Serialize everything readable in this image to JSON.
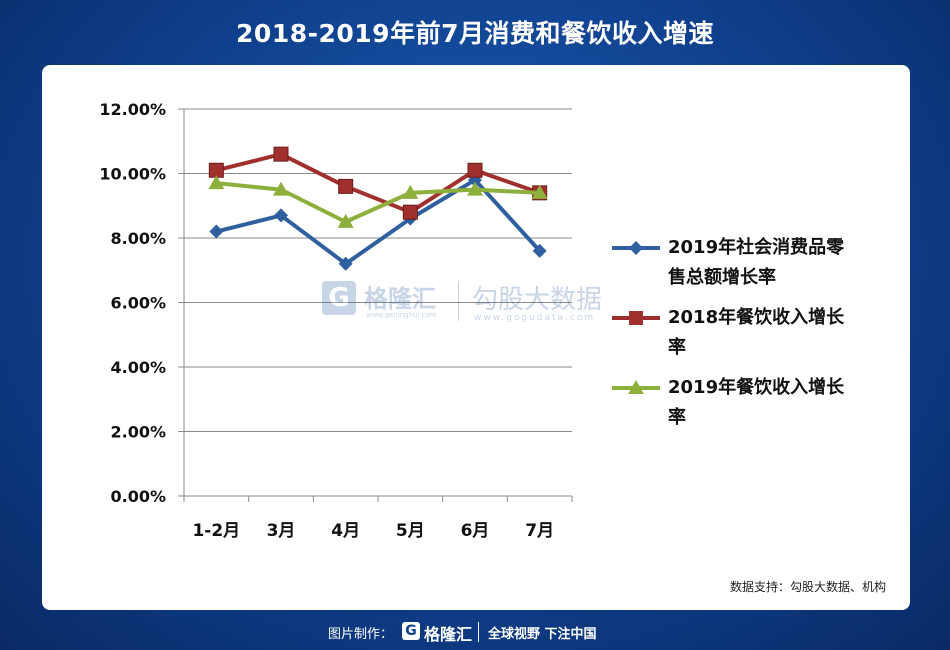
{
  "title": "2018-2019年前7月消费和餐饮收入增速",
  "source_note": "数据支持：勾股大数据、机构",
  "watermark": {
    "logo_glyph": "G",
    "brand": "格隆汇",
    "brand_sub": "www.gelonghui.com",
    "partner": "勾股大数据",
    "partner_sub": "www.gogudata.com"
  },
  "footer": {
    "label": "图片制作：",
    "logo_glyph": "G",
    "brand": "格隆汇",
    "slogan": "全球视野 下注中国"
  },
  "chart_data": {
    "type": "line",
    "categories": [
      "1-2月",
      "3月",
      "4月",
      "5月",
      "6月",
      "7月"
    ],
    "y_ticks": [
      "0.00%",
      "2.00%",
      "4.00%",
      "6.00%",
      "8.00%",
      "10.00%",
      "12.00%"
    ],
    "ylim": [
      0,
      12
    ],
    "grid": true,
    "legend_position": "right",
    "series": [
      {
        "name": "2019年社会消费品零售总额增长率",
        "name_lines": [
          "2019年社会消费品零",
          "售总额增长率"
        ],
        "marker": "diamond",
        "color": "#2f5f9e",
        "values": [
          8.2,
          8.7,
          7.2,
          8.6,
          9.8,
          7.6
        ]
      },
      {
        "name": "2018年餐饮收入增长率",
        "name_lines": [
          "2018年餐饮收入增长",
          "率"
        ],
        "marker": "square",
        "color": "#a0302e",
        "values": [
          10.1,
          10.6,
          9.6,
          8.8,
          10.1,
          9.4
        ]
      },
      {
        "name": "2019年餐饮收入增长率",
        "name_lines": [
          "2019年餐饮收入增长",
          "率"
        ],
        "marker": "triangle",
        "color": "#8db03c",
        "values": [
          9.7,
          9.5,
          8.5,
          9.4,
          9.5,
          9.4
        ]
      }
    ]
  }
}
